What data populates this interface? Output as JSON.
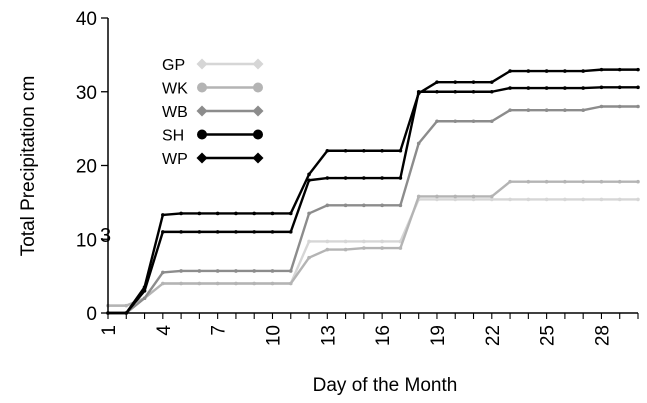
{
  "chart_data": {
    "type": "line",
    "title": "",
    "xlabel": "Day of the Month",
    "ylabel": "Total Precipitation  cm",
    "xlim": [
      1,
      30
    ],
    "ylim": [
      0,
      40
    ],
    "x_ticks": [
      1,
      4,
      7,
      10,
      13,
      16,
      19,
      22,
      25,
      28
    ],
    "y_ticks": [
      0,
      10,
      20,
      30,
      40
    ],
    "annotation": "3",
    "x": [
      1,
      2,
      3,
      4,
      5,
      6,
      7,
      8,
      9,
      10,
      11,
      12,
      13,
      14,
      15,
      16,
      17,
      18,
      19,
      20,
      21,
      22,
      23,
      24,
      25,
      26,
      27,
      28,
      29,
      30
    ],
    "series": [
      {
        "name": "GP",
        "color": "#d6d6d6",
        "marker": "diamond",
        "values": [
          1,
          1,
          2,
          4,
          4,
          4,
          4,
          4,
          4,
          4,
          4,
          9.7,
          9.7,
          9.7,
          9.7,
          9.7,
          9.7,
          15.4,
          15.4,
          15.4,
          15.4,
          15.4,
          15.4,
          15.4,
          15.4,
          15.4,
          15.4,
          15.4,
          15.4,
          15.4
        ]
      },
      {
        "name": "WK",
        "color": "#b4b4b4",
        "marker": "circle",
        "values": [
          1,
          1,
          2,
          4,
          4,
          4,
          4,
          4,
          4,
          4,
          4,
          7.5,
          8.6,
          8.6,
          8.8,
          8.8,
          8.8,
          15.8,
          15.8,
          15.8,
          15.8,
          15.8,
          17.8,
          17.8,
          17.8,
          17.8,
          17.8,
          17.8,
          17.8,
          17.8
        ]
      },
      {
        "name": "WB",
        "color": "#8c8c8c",
        "marker": "diamond",
        "values": [
          0,
          0,
          2,
          5.5,
          5.7,
          5.7,
          5.7,
          5.7,
          5.7,
          5.7,
          5.7,
          13.5,
          14.6,
          14.6,
          14.6,
          14.6,
          14.6,
          23,
          26,
          26,
          26,
          26,
          27.5,
          27.5,
          27.5,
          27.5,
          27.5,
          28,
          28,
          28
        ]
      },
      {
        "name": "SH",
        "color": "#000000",
        "marker": "circle",
        "values": [
          0,
          0,
          3.5,
          13.3,
          13.5,
          13.5,
          13.5,
          13.5,
          13.5,
          13.5,
          13.5,
          18.8,
          22,
          22,
          22,
          22,
          22,
          29.8,
          31.3,
          31.3,
          31.3,
          31.3,
          32.8,
          32.8,
          32.8,
          32.8,
          32.8,
          33,
          33,
          33
        ]
      },
      {
        "name": "WP",
        "color": "#000000",
        "marker": "diamond",
        "values": [
          0,
          0,
          3,
          11,
          11,
          11,
          11,
          11,
          11,
          11,
          11,
          18,
          18.3,
          18.3,
          18.3,
          18.3,
          18.3,
          30,
          30,
          30,
          30,
          30,
          30.5,
          30.5,
          30.5,
          30.5,
          30.5,
          30.6,
          30.6,
          30.6
        ]
      }
    ]
  }
}
